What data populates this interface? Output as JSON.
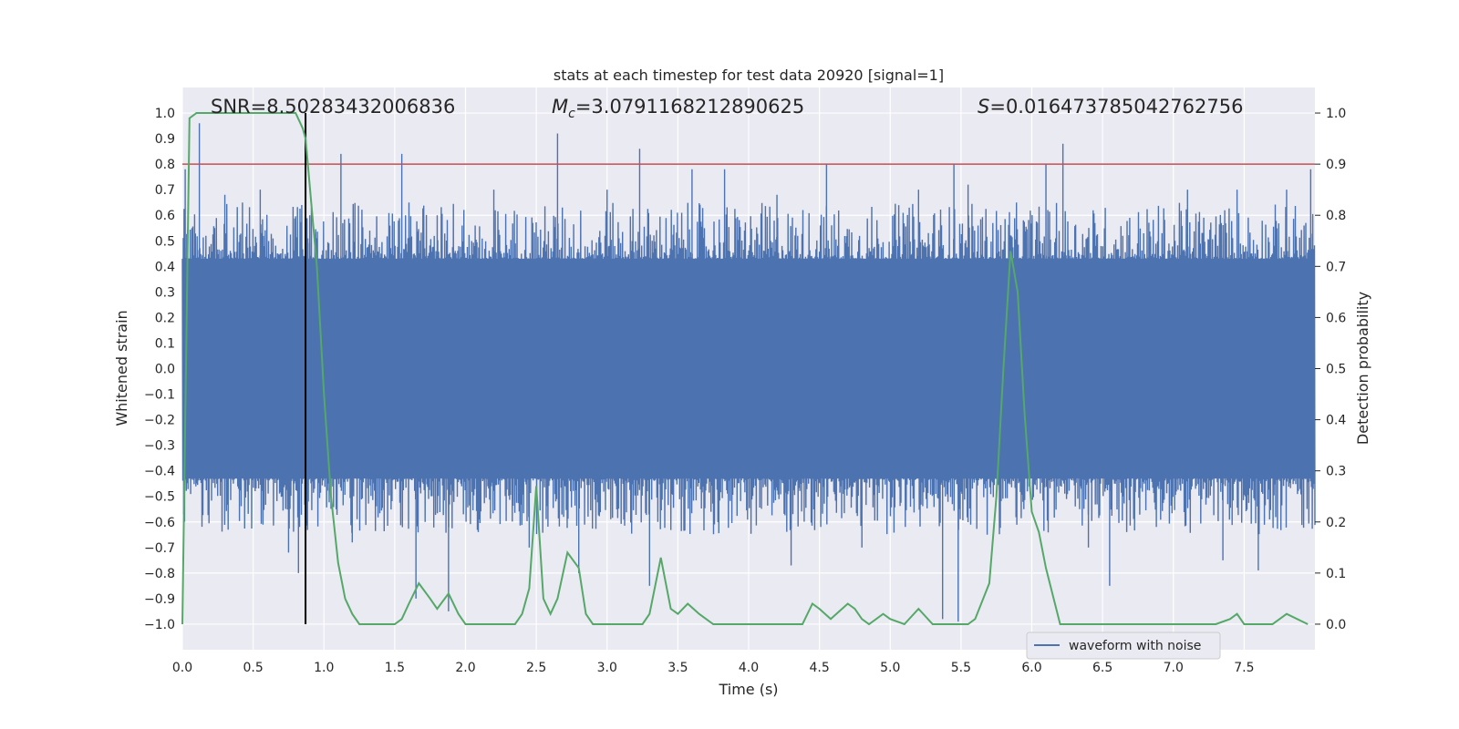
{
  "chart_data": {
    "type": "line",
    "title": "stats at each timestep for test data 20920 [signal=1]",
    "xlabel": "Time (s)",
    "ylabel": "Whitened strain",
    "y2label": "Detection probability",
    "xlim": [
      0,
      8
    ],
    "ylim": [
      -1.1,
      1.1
    ],
    "y2lim": [
      -0.05,
      1.05
    ],
    "xticks": [
      "0.0",
      "0.5",
      "1.0",
      "1.5",
      "2.0",
      "2.5",
      "3.0",
      "3.5",
      "4.0",
      "4.5",
      "5.0",
      "5.5",
      "6.0",
      "6.5",
      "7.0",
      "7.5"
    ],
    "yticks": [
      "1.0",
      "0.9",
      "0.8",
      "0.7",
      "0.6",
      "0.5",
      "0.4",
      "0.3",
      "0.2",
      "0.1",
      "0.0",
      "−0.1",
      "−0.2",
      "−0.3",
      "−0.4",
      "−0.5",
      "−0.6",
      "−0.7",
      "−0.8",
      "−0.9",
      "−1.0"
    ],
    "y2ticks": [
      "1.0",
      "0.9",
      "0.8",
      "0.7",
      "0.6",
      "0.5",
      "0.4",
      "0.3",
      "0.2",
      "0.1",
      "0.0"
    ],
    "grid": true,
    "legend": {
      "position": "bottom-right",
      "entries": [
        "waveform with noise"
      ]
    },
    "annotations": {
      "snr": "SNR=8.50283432006836",
      "mc_symbol": "M",
      "mc_sub": "c",
      "mc_value": "=3.0791168212890625",
      "s_symbol": "S",
      "s_value": "=0.016473785042762756"
    },
    "threshold_probability": 0.9,
    "marker_time": 0.87,
    "colors": {
      "waveform": "#4c72b0",
      "probability": "#55a868",
      "threshold": "#c44e52",
      "marker": "#000000",
      "background": "#eaeaf2"
    },
    "detection_probability": {
      "time": [
        0.0,
        0.05,
        0.1,
        0.15,
        0.2,
        0.25,
        0.3,
        0.35,
        0.4,
        0.45,
        0.5,
        0.55,
        0.6,
        0.65,
        0.7,
        0.75,
        0.8,
        0.85,
        0.87,
        0.95,
        1.0,
        1.05,
        1.1,
        1.15,
        1.2,
        1.25,
        1.3,
        1.4,
        1.5,
        1.55,
        1.6,
        1.67,
        1.75,
        1.8,
        1.88,
        1.95,
        2.0,
        2.05,
        2.15,
        2.25,
        2.35,
        2.4,
        2.45,
        2.5,
        2.55,
        2.6,
        2.65,
        2.72,
        2.8,
        2.85,
        2.9,
        3.0,
        3.1,
        3.2,
        3.25,
        3.3,
        3.38,
        3.45,
        3.5,
        3.57,
        3.65,
        3.75,
        3.9,
        4.0,
        4.15,
        4.3,
        4.38,
        4.45,
        4.5,
        4.58,
        4.7,
        4.75,
        4.8,
        4.85,
        4.95,
        5.0,
        5.1,
        5.2,
        5.3,
        5.35,
        5.4,
        5.5,
        5.55,
        5.6,
        5.7,
        5.75,
        5.8,
        5.85,
        5.9,
        5.95,
        6.0,
        6.05,
        6.1,
        6.2,
        6.25,
        6.35,
        6.45,
        6.5,
        6.6,
        6.8,
        7.0,
        7.2,
        7.3,
        7.4,
        7.45,
        7.5,
        7.6,
        7.7,
        7.8,
        7.95
      ],
      "values": [
        0.0,
        0.99,
        1.0,
        1.0,
        1.0,
        1.0,
        1.0,
        1.0,
        1.0,
        1.0,
        1.0,
        1.0,
        1.0,
        1.0,
        1.0,
        1.0,
        1.0,
        0.97,
        0.95,
        0.7,
        0.45,
        0.25,
        0.12,
        0.05,
        0.02,
        0.0,
        0.0,
        0.0,
        0.0,
        0.01,
        0.04,
        0.08,
        0.05,
        0.03,
        0.06,
        0.02,
        0.0,
        0.0,
        0.0,
        0.0,
        0.0,
        0.02,
        0.07,
        0.27,
        0.05,
        0.02,
        0.05,
        0.14,
        0.11,
        0.02,
        0.0,
        0.0,
        0.0,
        0.0,
        0.0,
        0.02,
        0.13,
        0.03,
        0.02,
        0.04,
        0.02,
        0.0,
        0.0,
        0.0,
        0.0,
        0.0,
        0.0,
        0.04,
        0.03,
        0.01,
        0.04,
        0.03,
        0.01,
        0.0,
        0.02,
        0.01,
        0.0,
        0.03,
        0.0,
        0.0,
        0.0,
        0.0,
        0.0,
        0.01,
        0.08,
        0.25,
        0.5,
        0.73,
        0.65,
        0.41,
        0.22,
        0.18,
        0.11,
        0.0,
        0.0,
        0.0,
        0.0,
        0.0,
        0.0,
        0.0,
        0.0,
        0.0,
        0.0,
        0.01,
        0.02,
        0.0,
        0.0,
        0.0,
        0.02,
        0.0
      ]
    },
    "waveform": {
      "name": "waveform with noise",
      "time_range": [
        0,
        8
      ],
      "core_amplitude": 0.43,
      "typical_peak_amplitude": 0.65,
      "spikes": [
        {
          "t": 0.02,
          "v": 0.78
        },
        {
          "t": 0.12,
          "v": 0.96
        },
        {
          "t": 0.3,
          "v": 0.68
        },
        {
          "t": 0.55,
          "v": 0.7
        },
        {
          "t": 0.75,
          "v": -0.72
        },
        {
          "t": 0.82,
          "v": -0.8
        },
        {
          "t": 0.9,
          "v": 0.6
        },
        {
          "t": 1.12,
          "v": 0.84
        },
        {
          "t": 1.2,
          "v": -0.68
        },
        {
          "t": 1.55,
          "v": 0.84
        },
        {
          "t": 1.65,
          "v": -0.9
        },
        {
          "t": 1.8,
          "v": 0.6
        },
        {
          "t": 1.88,
          "v": -0.95
        },
        {
          "t": 2.2,
          "v": 0.7
        },
        {
          "t": 2.45,
          "v": -0.7
        },
        {
          "t": 2.65,
          "v": 0.92
        },
        {
          "t": 2.8,
          "v": -0.8
        },
        {
          "t": 3.0,
          "v": 0.7
        },
        {
          "t": 3.23,
          "v": 0.86
        },
        {
          "t": 3.3,
          "v": -0.85
        },
        {
          "t": 3.6,
          "v": 0.78
        },
        {
          "t": 3.83,
          "v": 0.78
        },
        {
          "t": 4.2,
          "v": 0.68
        },
        {
          "t": 4.3,
          "v": -0.77
        },
        {
          "t": 4.55,
          "v": 0.8
        },
        {
          "t": 4.8,
          "v": -0.7
        },
        {
          "t": 5.2,
          "v": 0.7
        },
        {
          "t": 5.37,
          "v": -0.98
        },
        {
          "t": 5.45,
          "v": 0.8
        },
        {
          "t": 5.48,
          "v": -0.99
        },
        {
          "t": 5.55,
          "v": 0.72
        },
        {
          "t": 6.1,
          "v": 0.8
        },
        {
          "t": 6.22,
          "v": 0.88
        },
        {
          "t": 6.4,
          "v": -0.7
        },
        {
          "t": 6.55,
          "v": -0.85
        },
        {
          "t": 7.1,
          "v": 0.7
        },
        {
          "t": 7.35,
          "v": -0.75
        },
        {
          "t": 7.45,
          "v": 0.7
        },
        {
          "t": 7.6,
          "v": -0.79
        },
        {
          "t": 7.8,
          "v": 0.7
        },
        {
          "t": 7.97,
          "v": 0.78
        }
      ]
    }
  }
}
